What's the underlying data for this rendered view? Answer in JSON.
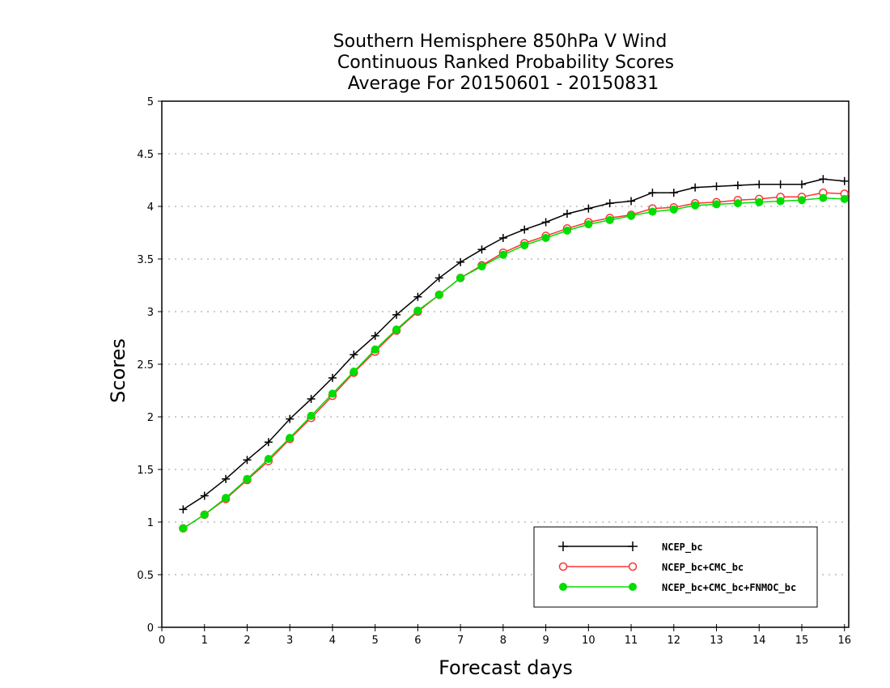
{
  "chart_data": {
    "type": "line",
    "title_lines": [
      "Southern Hemisphere 850hPa V Wind",
      "Continuous Ranked Probability Scores",
      "Average For 20150601 - 20150831"
    ],
    "xlabel": "Forecast days",
    "ylabel": "Scores",
    "xlim": [
      0,
      16.1
    ],
    "ylim": [
      0,
      5
    ],
    "xticks": [
      "0",
      "1",
      "2",
      "3",
      "4",
      "5",
      "6",
      "7",
      "8",
      "9",
      "10",
      "11",
      "12",
      "13",
      "14",
      "15",
      "16"
    ],
    "yticks": [
      "0",
      "0.5",
      "1",
      "1.5",
      "2",
      "2.5",
      "3",
      "3.5",
      "4",
      "4.5",
      "5"
    ],
    "grid": "horizontal-dotted",
    "legend_position": "lower-right",
    "x": [
      0.5,
      1,
      1.5,
      2,
      2.5,
      3,
      3.5,
      4,
      4.5,
      5,
      5.5,
      6,
      6.5,
      7,
      7.5,
      8,
      8.5,
      9,
      9.5,
      10,
      10.5,
      11,
      11.5,
      12,
      12.5,
      13,
      13.5,
      14,
      14.5,
      15,
      15.5,
      16
    ],
    "series": [
      {
        "name": "NCEP_bc",
        "color": "#000000",
        "marker": "plus",
        "values": [
          1.12,
          1.25,
          1.41,
          1.59,
          1.76,
          1.98,
          2.17,
          2.37,
          2.59,
          2.77,
          2.97,
          3.14,
          3.32,
          3.47,
          3.59,
          3.7,
          3.78,
          3.85,
          3.93,
          3.98,
          4.03,
          4.05,
          4.13,
          4.13,
          4.18,
          4.19,
          4.2,
          4.21,
          4.21,
          4.21,
          4.26,
          4.24
        ]
      },
      {
        "name": "NCEP_bc+CMC_bc",
        "color": "#ff3333",
        "marker": "open-circle",
        "values": [
          0.94,
          1.07,
          1.22,
          1.4,
          1.58,
          1.79,
          1.99,
          2.2,
          2.42,
          2.62,
          2.82,
          3.0,
          3.16,
          3.32,
          3.44,
          3.56,
          3.65,
          3.72,
          3.79,
          3.85,
          3.89,
          3.92,
          3.98,
          3.99,
          4.03,
          4.04,
          4.06,
          4.07,
          4.09,
          4.09,
          4.13,
          4.12
        ]
      },
      {
        "name": "NCEP_bc+CMC_bc+FNMOC_bc",
        "color": "#00dd00",
        "marker": "filled-circle",
        "values": [
          0.94,
          1.07,
          1.23,
          1.41,
          1.6,
          1.8,
          2.01,
          2.22,
          2.43,
          2.64,
          2.83,
          3.01,
          3.16,
          3.32,
          3.43,
          3.54,
          3.63,
          3.7,
          3.77,
          3.83,
          3.87,
          3.91,
          3.95,
          3.97,
          4.01,
          4.02,
          4.03,
          4.04,
          4.05,
          4.06,
          4.08,
          4.07
        ]
      }
    ]
  }
}
